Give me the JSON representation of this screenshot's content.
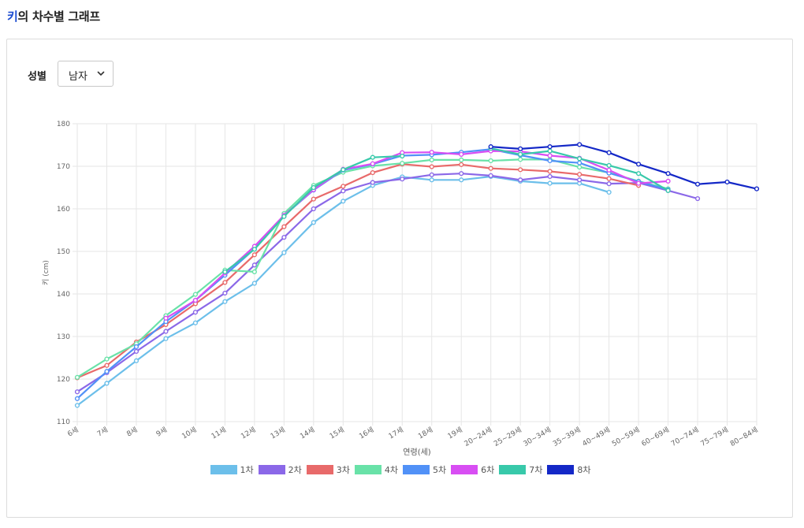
{
  "page": {
    "title_accent": "키",
    "title_rest": "의 차수별 그래프"
  },
  "filter": {
    "label": "성별",
    "selected": "남자"
  },
  "chart_data": {
    "type": "line",
    "ylabel": "키 (cm)",
    "xlabel": "연령(세)",
    "ylim": [
      110,
      180
    ],
    "yticks": [
      110,
      120,
      130,
      140,
      150,
      160,
      170,
      180
    ],
    "grid": true,
    "legend_position": "bottom",
    "categories": [
      "6세",
      "7세",
      "8세",
      "9세",
      "10세",
      "11세",
      "12세",
      "13세",
      "14세",
      "15세",
      "16세",
      "17세",
      "18세",
      "19세",
      "20~24세",
      "25~29세",
      "30~34세",
      "35~39세",
      "40~49세",
      "50~59세",
      "60~69세",
      "70~74세",
      "75~79세",
      "80~84세"
    ],
    "series": [
      {
        "name": "1차",
        "color": "#6cbfea",
        "values": [
          113.8,
          119,
          124.3,
          129.5,
          133.2,
          138.2,
          142.5,
          149.7,
          156.8,
          161.8,
          165.5,
          167.5,
          166.8,
          166.8,
          167.6,
          166.5,
          166,
          166,
          163.9,
          null,
          null,
          null,
          null,
          null
        ]
      },
      {
        "name": "2차",
        "color": "#8b68e8",
        "values": [
          117,
          121.5,
          126.5,
          131.2,
          135.7,
          140.2,
          146.8,
          153.3,
          160,
          164.2,
          166.2,
          167,
          168,
          168.3,
          167.8,
          166.8,
          167.6,
          166.8,
          165.9,
          166.1,
          164.3,
          162.4,
          null,
          null
        ]
      },
      {
        "name": "3차",
        "color": "#e86a6a",
        "values": [
          120.3,
          123.2,
          128.7,
          132.8,
          137.7,
          142.7,
          149.2,
          155.8,
          162.3,
          165.3,
          168.5,
          170.5,
          169.9,
          170.4,
          169.5,
          169.2,
          168.8,
          168.1,
          167.1,
          165.5,
          null,
          null,
          null,
          null
        ]
      },
      {
        "name": "4차",
        "color": "#69e2a8",
        "values": [
          120.4,
          124.7,
          128.3,
          134.9,
          139.9,
          145.6,
          145.2,
          158.9,
          165.5,
          168.6,
          170.1,
          170.7,
          171.5,
          171.5,
          171.3,
          171.6,
          171.6,
          169.8,
          168.5,
          166.5,
          164.7,
          null,
          null,
          null
        ]
      },
      {
        "name": "5차",
        "color": "#5191f7",
        "values": [
          115.4,
          121.8,
          127.6,
          133.5,
          138.5,
          144.4,
          150.6,
          158.4,
          164.4,
          169.1,
          170.5,
          172.5,
          172.7,
          173.3,
          174,
          172.6,
          171.3,
          170.8,
          168.4,
          166.4,
          164.5,
          null,
          null,
          null
        ]
      },
      {
        "name": "6차",
        "color": "#d84ef3",
        "values": [
          null,
          null,
          null,
          134.3,
          138.5,
          144.9,
          151.2,
          158.5,
          164.5,
          169.3,
          170.6,
          173.2,
          173.3,
          172.8,
          173.6,
          173.5,
          172.5,
          171.9,
          169.1,
          166,
          166.5,
          null,
          null,
          null
        ]
      },
      {
        "name": "7차",
        "color": "#38c9aa",
        "values": [
          null,
          null,
          null,
          null,
          null,
          145.2,
          150.5,
          158.2,
          165,
          169.2,
          172.1,
          172.4,
          null,
          null,
          174.2,
          172.8,
          173.6,
          171.8,
          170.2,
          168.3,
          164.3,
          null,
          null,
          null
        ]
      },
      {
        "name": "8차",
        "color": "#1428c7",
        "values": [
          null,
          null,
          null,
          null,
          null,
          null,
          null,
          null,
          null,
          null,
          null,
          null,
          null,
          null,
          174.6,
          174.1,
          174.6,
          175.1,
          173.2,
          170.5,
          168.3,
          165.8,
          166.3,
          164.7
        ]
      }
    ]
  }
}
